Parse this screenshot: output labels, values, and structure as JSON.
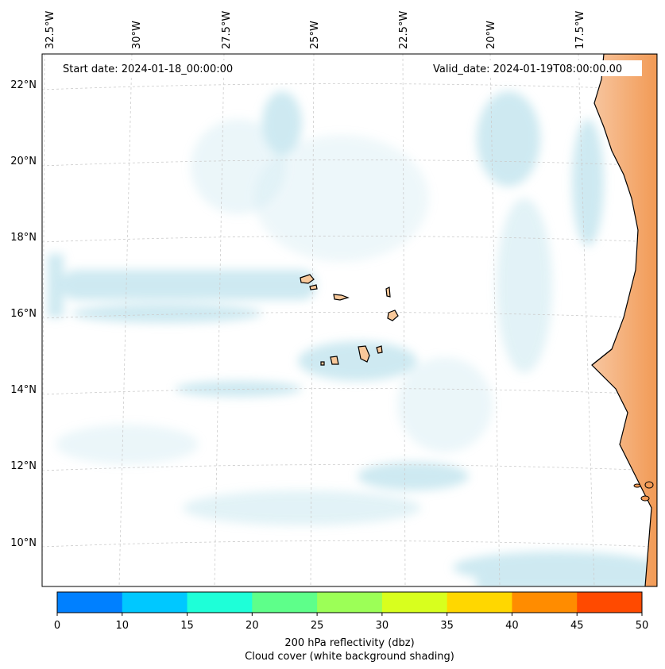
{
  "annotations": {
    "start_date": "Start date: 2024-01-18_00:00:00",
    "valid_date": "Valid_date: 2024-01-19T08:00:00.00"
  },
  "chart_data": {
    "type": "heatmap",
    "lon_ticks": [
      "32.5°W",
      "30°W",
      "27.5°W",
      "25°W",
      "22.5°W",
      "20°W",
      "17.5°W"
    ],
    "lat_ticks": [
      "22°N",
      "20°N",
      "18°N",
      "16°N",
      "14°N",
      "12°N",
      "10°N"
    ],
    "lon_range": [
      -32.5,
      -15
    ],
    "lat_range": [
      9,
      22.8
    ],
    "grid": true,
    "colorbar": {
      "ticks": [
        "0",
        "10",
        "15",
        "20",
        "25",
        "30",
        "35",
        "40",
        "45",
        "50"
      ],
      "bounds": [
        0,
        10,
        15,
        20,
        25,
        30,
        35,
        40,
        45,
        50
      ],
      "colors": [
        "#0080ff",
        "#00c8ff",
        "#1effd8",
        "#5eff8a",
        "#9cff57",
        "#d8ff1e",
        "#ffd700",
        "#ff8c00",
        "#ff4a00"
      ],
      "label_line1": "200 hPa reflectivity (dbz)",
      "label_line2": "Cloud cover (white background shading)"
    },
    "colors": {
      "cloud": "#a6d8e6",
      "land": "#f5a060",
      "island": "#f8c89a",
      "coastline": "#000000"
    }
  }
}
